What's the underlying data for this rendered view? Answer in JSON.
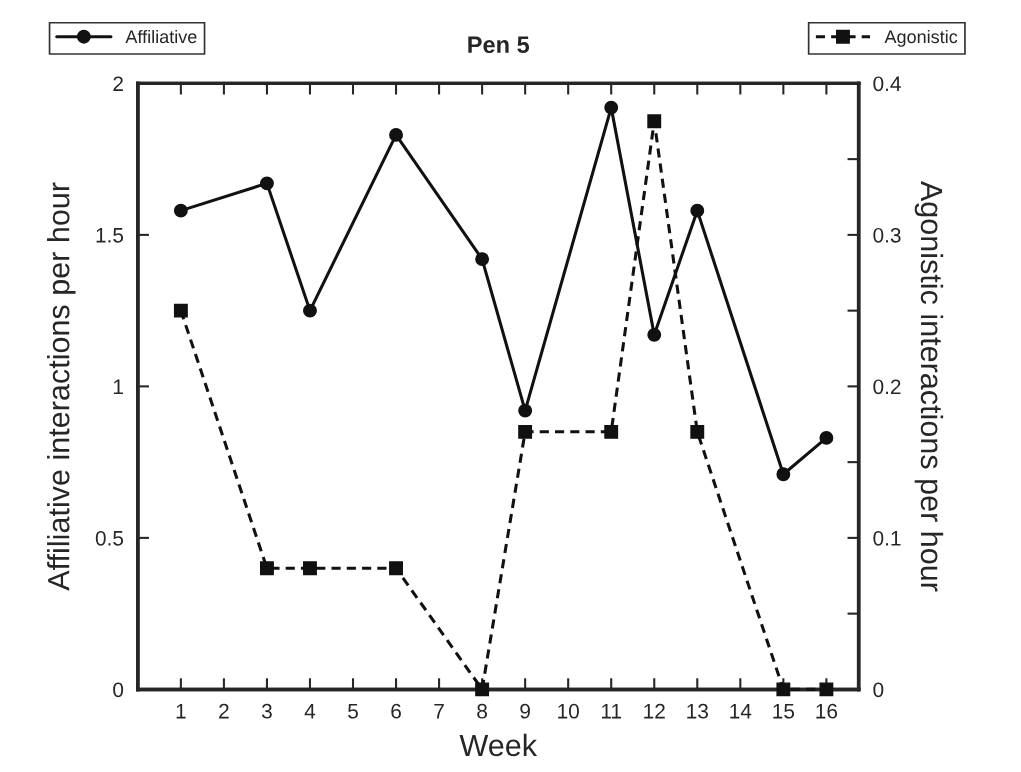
{
  "chart_data": {
    "type": "line",
    "title": "Pen 5",
    "xlabel": "Week",
    "ylabel": "Affiliative interactions per hour",
    "y2label": "Agonistic interactions per hour",
    "x": [
      1,
      3,
      4,
      6,
      8,
      9,
      11,
      12,
      13,
      15,
      16
    ],
    "series": [
      {
        "name": "Affiliative",
        "color": "#111111",
        "marker": "circle",
        "line_style": "solid",
        "values": [
          1.58,
          1.67,
          1.25,
          1.83,
          1.42,
          0.92,
          1.92,
          1.17,
          1.58,
          0.71,
          0.83
        ]
      },
      {
        "name": "Agonistic",
        "color": "#111111",
        "marker": "square",
        "line_style": "dashed",
        "axis": "y2",
        "values": [
          0.25,
          0.08,
          0.08,
          0.08,
          0,
          0.17,
          0.17,
          0.375,
          0.17,
          0,
          0
        ]
      }
    ],
    "xlim": [
      0,
      16.75
    ],
    "xticks": [
      1,
      2,
      3,
      4,
      5,
      6,
      7,
      8,
      9,
      10,
      11,
      12,
      13,
      14,
      15,
      16
    ],
    "ylim": [
      0,
      2
    ],
    "yticks": [
      0,
      0.5,
      1,
      1.5,
      2
    ],
    "y2lim": [
      0,
      0.4
    ],
    "y2ticks": [
      0,
      {
        "value": 0.05,
        "label": null
      },
      0.1,
      {
        "value": 0.15,
        "label": null
      },
      0.2,
      {
        "value": 0.25,
        "label": null
      },
      0.3,
      {
        "value": 0.35,
        "label": null
      },
      0.4
    ],
    "grid": false,
    "legend": "top"
  }
}
